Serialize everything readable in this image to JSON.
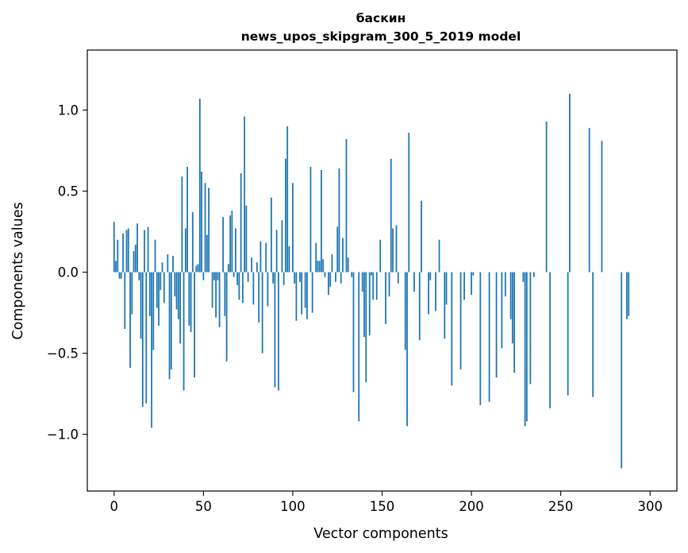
{
  "chart_data": {
    "type": "bar",
    "title": "баскин",
    "subtitle": "news_upos_skipgram_300_5_2019 model",
    "xlabel": "Vector components",
    "ylabel": "Components values",
    "xlim": [
      -15,
      315
    ],
    "ylim": [
      -1.35,
      1.37
    ],
    "xticks": [
      0,
      50,
      100,
      150,
      200,
      250,
      300
    ],
    "xtick_labels": [
      "0",
      "50",
      "100",
      "150",
      "200",
      "250",
      "300"
    ],
    "yticks": [
      -1.0,
      -0.5,
      0.0,
      0.5,
      1.0
    ],
    "ytick_labels": [
      "−1.0",
      "−0.5",
      "0.0",
      "0.5",
      "1.0"
    ],
    "grid": false,
    "color": "#1f77b4",
    "values": [
      0.31,
      0.07,
      0.2,
      -0.04,
      -0.04,
      0.24,
      -0.35,
      0.26,
      0.27,
      -0.59,
      -0.26,
      0.13,
      0.17,
      0.3,
      -0.05,
      -0.41,
      -0.83,
      0.26,
      -0.81,
      0.28,
      -0.27,
      -0.96,
      -0.48,
      0.2,
      -0.22,
      -0.33,
      -0.11,
      0.06,
      -0.19,
      0.0,
      0.11,
      -0.66,
      -0.6,
      0.1,
      -0.15,
      -0.23,
      -0.29,
      -0.44,
      0.59,
      -0.73,
      0.27,
      0.65,
      -0.33,
      -0.37,
      0.37,
      -0.65,
      0.04,
      0.05,
      1.07,
      0.62,
      -0.05,
      0.55,
      0.23,
      0.52,
      0.0,
      -0.22,
      -0.05,
      -0.28,
      -0.05,
      -0.34,
      0.0,
      0.34,
      -0.27,
      -0.55,
      0.05,
      0.35,
      0.38,
      -0.03,
      0.27,
      -0.08,
      -0.17,
      0.61,
      -0.19,
      0.96,
      0.41,
      -0.06,
      0.0,
      0.09,
      -0.2,
      0.0,
      0.06,
      -0.31,
      0.19,
      -0.5,
      0.0,
      0.18,
      -0.21,
      0.0,
      0.46,
      -0.07,
      -0.71,
      0.26,
      -0.73,
      0.0,
      0.32,
      -0.08,
      0.7,
      0.9,
      0.16,
      0.0,
      0.55,
      -0.07,
      -0.3,
      0.0,
      -0.06,
      -0.26,
      0.0,
      -0.22,
      -0.29,
      0.0,
      0.65,
      -0.25,
      0.0,
      0.18,
      0.07,
      0.07,
      0.63,
      0.08,
      -0.03,
      0.0,
      -0.14,
      -0.09,
      0.11,
      0.0,
      -0.06,
      0.28,
      0.64,
      -0.07,
      0.21,
      0.0,
      0.82,
      0.09,
      0.0,
      -0.03,
      -0.74,
      0.0,
      0.0,
      -0.92,
      0.0,
      -0.12,
      -0.4,
      -0.68,
      0.0,
      -0.39,
      -0.02,
      -0.17,
      0.0,
      -0.17,
      0.0,
      0.2,
      0.0,
      0.0,
      -0.32,
      0.0,
      -0.15,
      0.7,
      0.27,
      0.0,
      0.29,
      -0.07,
      0.0,
      0.0,
      0.0,
      -0.48,
      -0.95,
      0.86,
      0.0,
      0.0,
      -0.12,
      0.0,
      0.0,
      -0.42,
      0.44,
      0.0,
      0.0,
      0.0,
      -0.26,
      -0.05,
      0.0,
      0.0,
      -0.24,
      0.0,
      0.2,
      0.0,
      0.0,
      -0.41,
      -0.2,
      0.0,
      0.0,
      -0.7,
      0.0,
      0.0,
      0.0,
      0.0,
      -0.6,
      0.0,
      -0.17,
      0.0,
      0.0,
      0.0,
      -0.14,
      -0.02,
      0.0,
      0.0,
      0.0,
      -0.82,
      0.0,
      0.0,
      0.0,
      0.0,
      -0.8,
      0.0,
      0.0,
      0.0,
      -0.65,
      0.0,
      0.0,
      -0.47,
      0.0,
      -0.15,
      0.0,
      0.0,
      -0.29,
      -0.44,
      -0.62,
      0.0,
      0.0,
      0.0,
      0.0,
      -0.06,
      -0.95,
      -0.92,
      0.0,
      -0.69,
      0.0,
      -0.03,
      0.0,
      0.0,
      0.0,
      0.0,
      0.0,
      0.0,
      0.93,
      0.0,
      -0.84,
      0.0,
      0.0,
      0.0,
      0.0,
      0.0,
      0.0,
      0.0,
      0.0,
      0.0,
      -0.76,
      1.1,
      0.0,
      0.0,
      0.0,
      0.0,
      0.0,
      0.0,
      0.0,
      0.0,
      0.0,
      0.0,
      0.89,
      0.0,
      -0.77,
      0.0,
      0.0,
      0.0,
      0.0,
      0.81,
      0.0,
      0.0,
      0.0,
      0.0,
      0.0,
      0.0,
      0.0,
      0.0,
      0.0,
      0.0,
      -1.21,
      0.0,
      0.0,
      -0.29,
      -0.27,
      0.0,
      0.0,
      0.0,
      0.0,
      0.0,
      0.0,
      0.0,
      0.0,
      0.0,
      0.0,
      0.0
    ]
  }
}
